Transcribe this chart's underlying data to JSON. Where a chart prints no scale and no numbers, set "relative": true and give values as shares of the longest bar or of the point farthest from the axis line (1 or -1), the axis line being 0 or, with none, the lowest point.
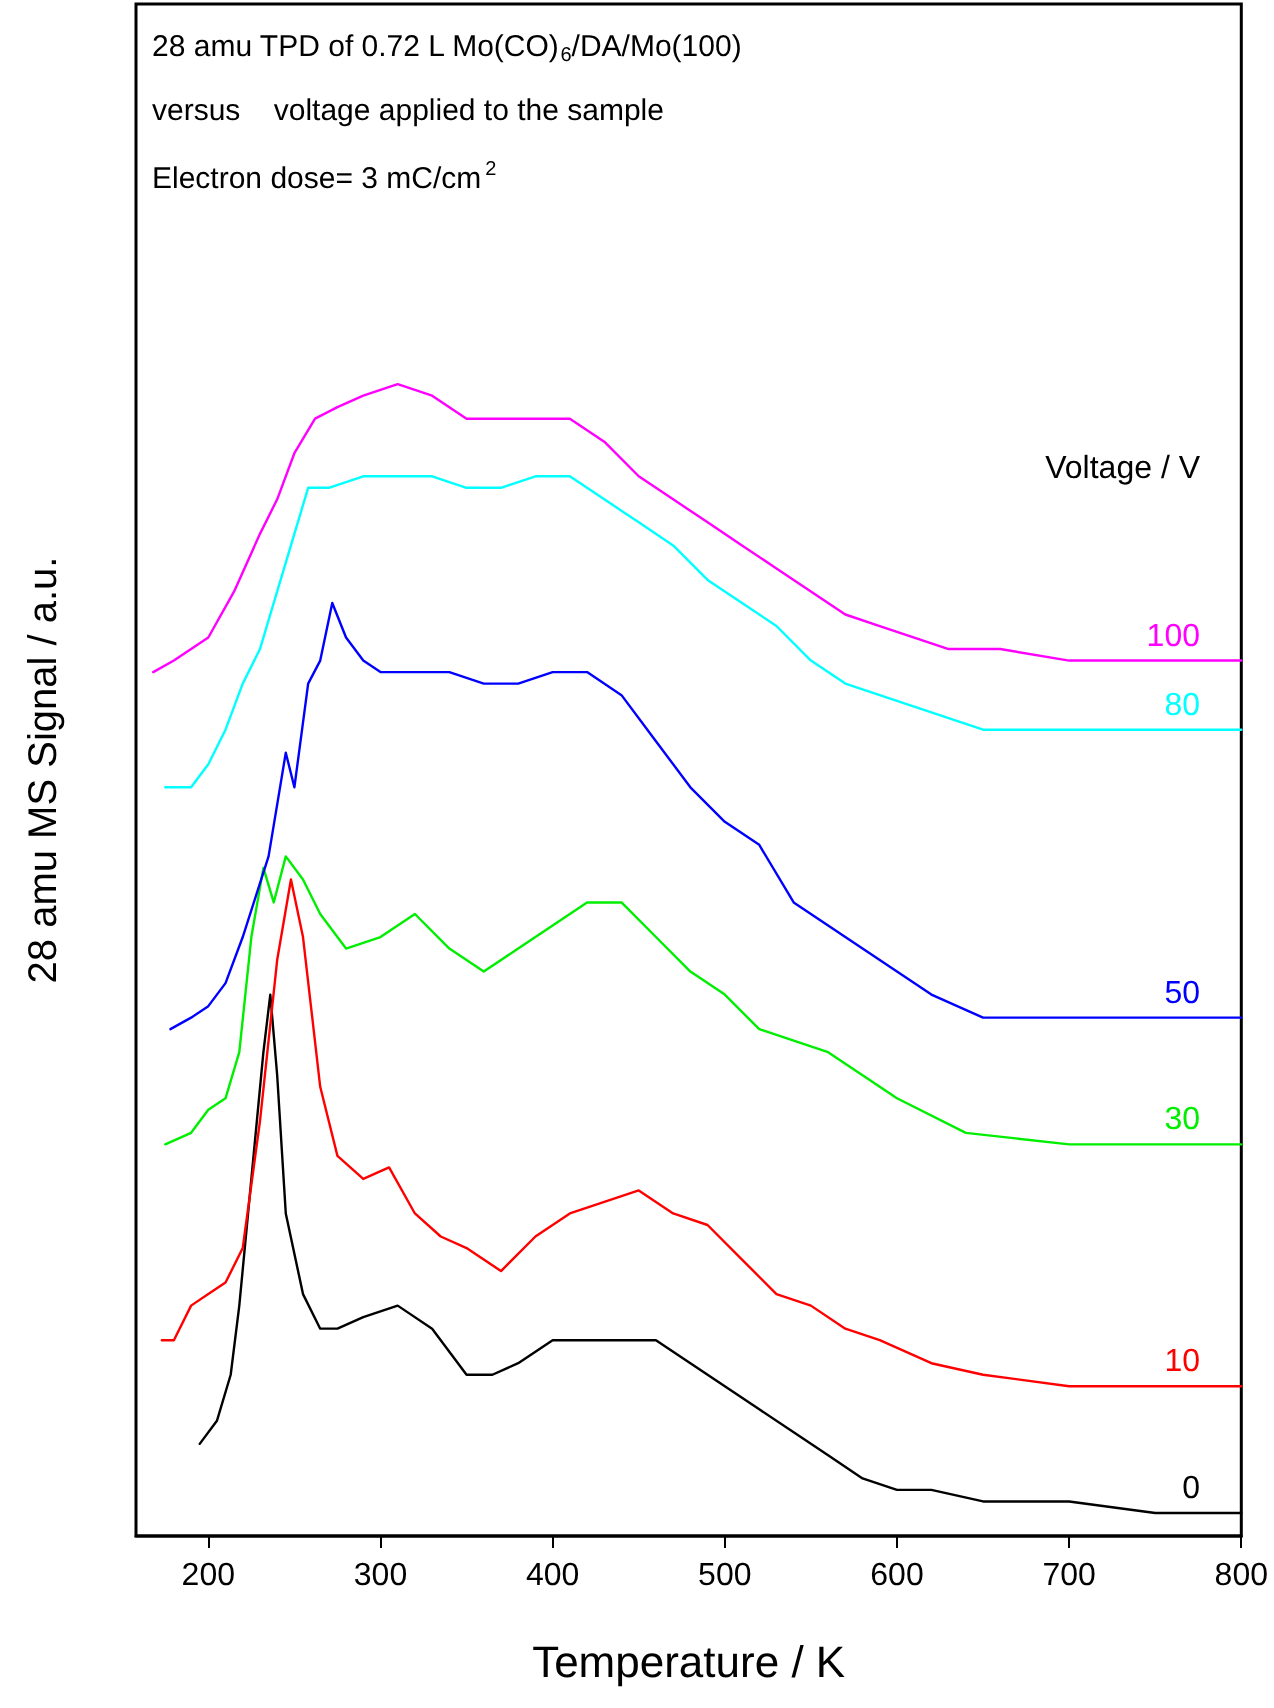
{
  "chart_data": {
    "type": "line",
    "title": "28 amu TPD of 0.72 L Mo(CO)$_{6}$/DA/Mo(100)",
    "subtitle": "versus    voltage applied to the sample",
    "annotations": [
      "Electron dose= 3 mC/cm$^{2}$"
    ],
    "xlabel": "Temperature / K",
    "ylabel": "28 amu MS Signal / a.u.",
    "legend_title": "Voltage / V",
    "relative": true,
    "xlim": [
      158,
      800
    ],
    "xticks": [
      200,
      300,
      400,
      500,
      600,
      700,
      800
    ],
    "grid": false,
    "legend": false,
    "marker": "none",
    "line_style": "solid",
    "series": [
      {
        "name": "0",
        "color": "#000000",
        "x": [
          195,
          205,
          213,
          218,
          225,
          232,
          236,
          240,
          245,
          255,
          265,
          275,
          290,
          310,
          330,
          350,
          365,
          380,
          400,
          420,
          440,
          460,
          480,
          500,
          520,
          540,
          560,
          580,
          600,
          620,
          650,
          700,
          750,
          800
        ],
        "values": [
          0.08,
          0.1,
          0.14,
          0.2,
          0.31,
          0.42,
          0.47,
          0.4,
          0.28,
          0.21,
          0.18,
          0.18,
          0.19,
          0.2,
          0.18,
          0.14,
          0.14,
          0.15,
          0.17,
          0.17,
          0.17,
          0.17,
          0.15,
          0.13,
          0.11,
          0.09,
          0.07,
          0.05,
          0.04,
          0.04,
          0.03,
          0.03,
          0.02,
          0.02
        ]
      },
      {
        "name": "10",
        "color": "#ff0000",
        "x": [
          173,
          180,
          190,
          200,
          210,
          220,
          230,
          240,
          248,
          255,
          265,
          275,
          290,
          305,
          320,
          335,
          350,
          370,
          390,
          410,
          430,
          450,
          470,
          490,
          510,
          530,
          550,
          570,
          590,
          620,
          650,
          700,
          750,
          800
        ],
        "values": [
          0.17,
          0.17,
          0.2,
          0.21,
          0.22,
          0.25,
          0.36,
          0.5,
          0.57,
          0.52,
          0.39,
          0.33,
          0.31,
          0.32,
          0.28,
          0.26,
          0.25,
          0.23,
          0.26,
          0.28,
          0.29,
          0.3,
          0.28,
          0.27,
          0.24,
          0.21,
          0.2,
          0.18,
          0.17,
          0.15,
          0.14,
          0.13,
          0.13,
          0.13
        ]
      },
      {
        "name": "30",
        "color": "#00ee00",
        "x": [
          175,
          190,
          200,
          210,
          218,
          225,
          232,
          238,
          245,
          255,
          265,
          280,
          300,
          320,
          340,
          360,
          380,
          400,
          420,
          440,
          460,
          480,
          500,
          520,
          540,
          560,
          580,
          600,
          640,
          700,
          750,
          800
        ],
        "values": [
          0.34,
          0.35,
          0.37,
          0.38,
          0.42,
          0.52,
          0.58,
          0.55,
          0.59,
          0.57,
          0.54,
          0.51,
          0.52,
          0.54,
          0.51,
          0.49,
          0.51,
          0.53,
          0.55,
          0.55,
          0.52,
          0.49,
          0.47,
          0.44,
          0.43,
          0.42,
          0.4,
          0.38,
          0.35,
          0.34,
          0.34,
          0.34
        ]
      },
      {
        "name": "50",
        "color": "#0000ff",
        "x": [
          178,
          190,
          200,
          210,
          220,
          235,
          245,
          250,
          258,
          265,
          272,
          280,
          290,
          300,
          320,
          340,
          360,
          380,
          400,
          420,
          440,
          460,
          480,
          500,
          520,
          540,
          560,
          580,
          600,
          620,
          650,
          700,
          750,
          800
        ],
        "values": [
          0.44,
          0.45,
          0.46,
          0.48,
          0.52,
          0.59,
          0.68,
          0.65,
          0.74,
          0.76,
          0.81,
          0.78,
          0.76,
          0.75,
          0.75,
          0.75,
          0.74,
          0.74,
          0.75,
          0.75,
          0.73,
          0.69,
          0.65,
          0.62,
          0.6,
          0.55,
          0.53,
          0.51,
          0.49,
          0.47,
          0.45,
          0.45,
          0.45,
          0.45
        ]
      },
      {
        "name": "80",
        "color": "#00ffff",
        "x": [
          175,
          190,
          200,
          210,
          220,
          230,
          240,
          250,
          258,
          270,
          290,
          310,
          330,
          350,
          370,
          390,
          410,
          430,
          450,
          470,
          490,
          510,
          530,
          550,
          570,
          590,
          610,
          630,
          650,
          700,
          750,
          800
        ],
        "values": [
          0.65,
          0.65,
          0.67,
          0.7,
          0.74,
          0.77,
          0.82,
          0.87,
          0.91,
          0.91,
          0.92,
          0.92,
          0.92,
          0.91,
          0.91,
          0.92,
          0.92,
          0.9,
          0.88,
          0.86,
          0.83,
          0.81,
          0.79,
          0.76,
          0.74,
          0.73,
          0.72,
          0.71,
          0.7,
          0.7,
          0.7,
          0.7
        ]
      },
      {
        "name": "100",
        "color": "#ff00ff",
        "x": [
          168,
          180,
          200,
          215,
          230,
          240,
          250,
          262,
          275,
          290,
          310,
          330,
          350,
          370,
          390,
          410,
          430,
          450,
          470,
          490,
          510,
          530,
          550,
          570,
          590,
          610,
          630,
          660,
          700,
          750,
          800
        ],
        "values": [
          0.75,
          0.76,
          0.78,
          0.82,
          0.87,
          0.9,
          0.94,
          0.97,
          0.98,
          0.99,
          1.0,
          0.99,
          0.97,
          0.97,
          0.97,
          0.97,
          0.95,
          0.92,
          0.9,
          0.88,
          0.86,
          0.84,
          0.82,
          0.8,
          0.79,
          0.78,
          0.77,
          0.77,
          0.76,
          0.76,
          0.76
        ]
      }
    ]
  }
}
